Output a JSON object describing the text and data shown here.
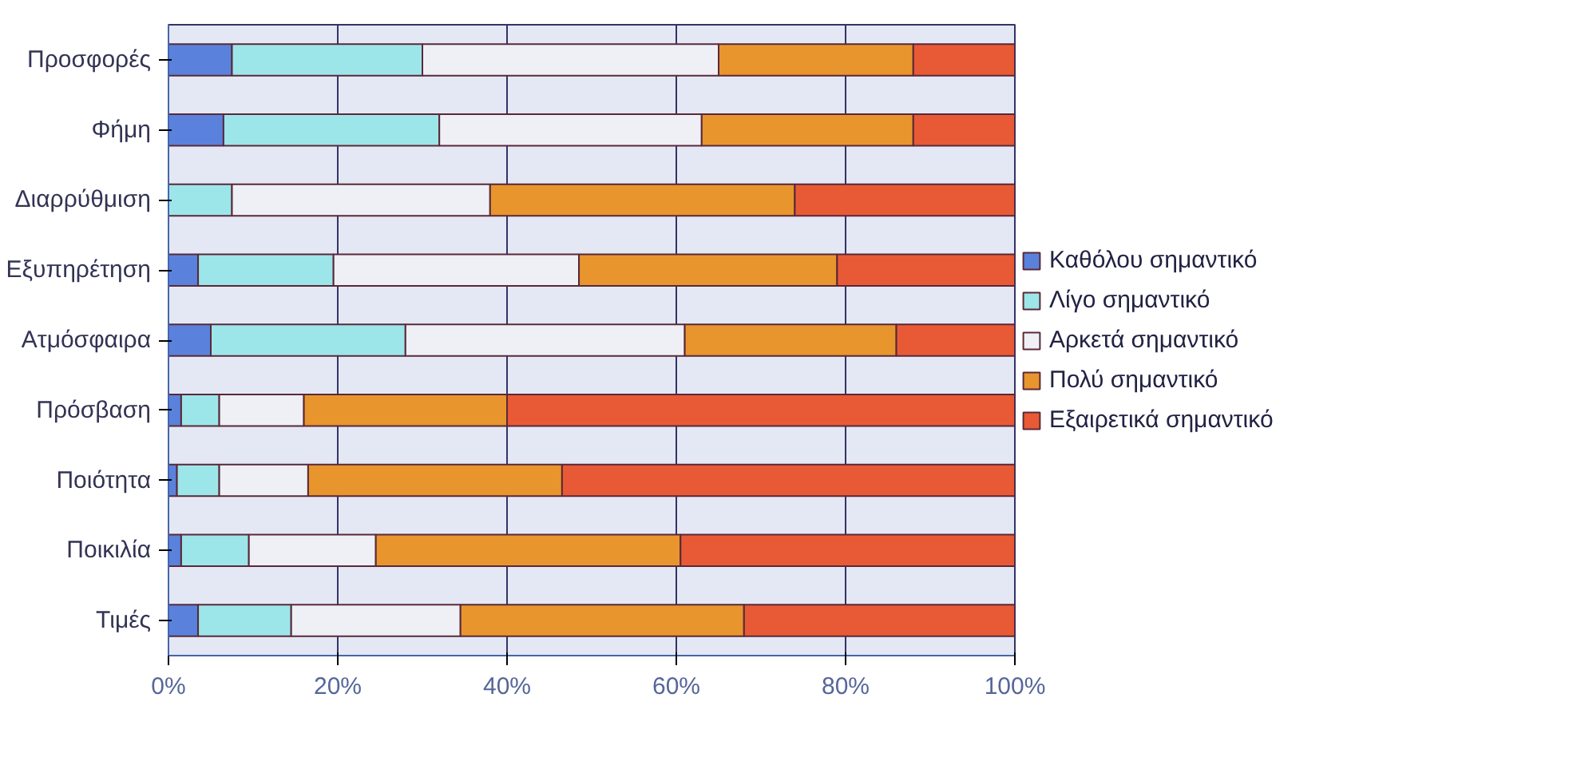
{
  "chart_data": {
    "type": "bar",
    "orientation": "horizontal",
    "stacked": true,
    "categories": [
      "Προσφορές",
      "Φήμη",
      "Διαρρύθμιση",
      "Εξυπηρέτηση",
      "Ατμόσφαιρα",
      "Πρόσβαση",
      "Ποιότητα",
      "Ποικιλία",
      "Τιμές"
    ],
    "series": [
      {
        "name": "Καθόλου σημαντικό",
        "color": "#5a82dc",
        "values": [
          7.5,
          6.5,
          0,
          3.5,
          5,
          1.5,
          1,
          1.5,
          3.5
        ]
      },
      {
        "name": "Λίγο σημαντικό",
        "color": "#9ce6ea",
        "values": [
          22.5,
          25.5,
          7.5,
          16,
          23,
          4.5,
          5,
          8,
          11
        ]
      },
      {
        "name": "Αρκετά σημαντικό",
        "color": "#eef0f6",
        "values": [
          35,
          31,
          30.5,
          29,
          33,
          10,
          10.5,
          15,
          20
        ]
      },
      {
        "name": "Πολύ σημαντικό",
        "color": "#e8952e",
        "values": [
          23,
          25,
          36,
          30.5,
          25,
          24,
          30,
          36,
          33.5
        ]
      },
      {
        "name": "Εξαιρετικά σημαντικό",
        "color": "#e85a36",
        "values": [
          12,
          12,
          26,
          21,
          14,
          60,
          53.5,
          39.5,
          32
        ]
      }
    ],
    "xlim": [
      0,
      100
    ],
    "xticks": [
      {
        "value": 0,
        "label": "0%"
      },
      {
        "value": 20,
        "label": "20%"
      },
      {
        "value": 40,
        "label": "40%"
      },
      {
        "value": 60,
        "label": "60%"
      },
      {
        "value": 80,
        "label": "80%"
      },
      {
        "value": 100,
        "label": "100%"
      }
    ],
    "grid": "x",
    "legend": "right"
  }
}
